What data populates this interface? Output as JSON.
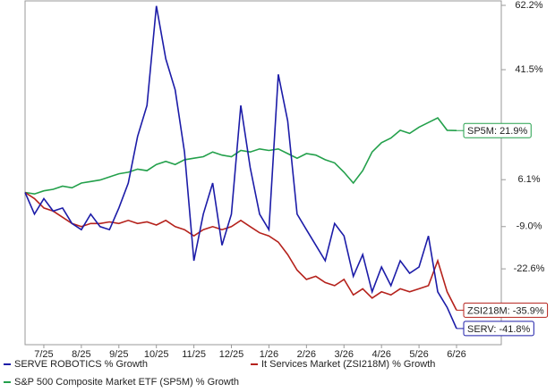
{
  "chart_data": {
    "type": "line",
    "categories": [
      null,
      null,
      "7/25",
      null,
      null,
      null,
      "8/25",
      null,
      null,
      null,
      "9/25",
      null,
      null,
      null,
      "10/25",
      null,
      null,
      null,
      "11/25",
      null,
      null,
      null,
      "12/25",
      null,
      null,
      null,
      "1/26",
      null,
      null,
      null,
      "2/26",
      null,
      null,
      null,
      "3/26",
      null,
      null,
      null,
      "4/26",
      null,
      null,
      null,
      "5/26",
      null,
      null,
      null,
      "6/26"
    ],
    "series": [
      {
        "name": "SERVE ROBOTICS % Growth",
        "color": "#1c1ca8",
        "values": [
          2,
          -5,
          0,
          -4,
          -3,
          -8,
          -10,
          -5,
          -9,
          -10,
          -3,
          5,
          20,
          30,
          62,
          45,
          35,
          15,
          -20,
          -5,
          5,
          -15,
          -5,
          30,
          10,
          -5,
          -10,
          40,
          25,
          -5,
          -10,
          -15,
          -20,
          -8,
          -12,
          -25,
          -18,
          -30,
          -22,
          -28,
          -20,
          -24,
          -22,
          -12,
          -30,
          -35,
          -41.8
        ],
        "value_labels": [
          null,
          null,
          null,
          null,
          null,
          null,
          null,
          null,
          null,
          null,
          null,
          null,
          null,
          null,
          null,
          null,
          null,
          null,
          null,
          null,
          null,
          null,
          null,
          null,
          null,
          null,
          null,
          null,
          null,
          null,
          null,
          null,
          null,
          null,
          null,
          null,
          null,
          null,
          null,
          null,
          null,
          null,
          null,
          null,
          null,
          null,
          "SERV: -41.8%"
        ]
      },
      {
        "name": "It Services Market (ZSI218M) % Growth",
        "color": "#b5221c",
        "values": [
          2,
          0,
          -3,
          -4,
          -6,
          -8,
          -9,
          -8,
          -8,
          -7.5,
          -8,
          -7,
          -8,
          -7.5,
          -8.5,
          -7,
          -9,
          -10,
          -12,
          -10,
          -9,
          -10,
          -9,
          -7,
          -9,
          -11,
          -12,
          -14,
          -18,
          -23,
          -26,
          -25,
          -27,
          -28,
          -26,
          -31,
          -29,
          -32,
          -30,
          -31,
          -29,
          -30,
          -29,
          -28,
          -20,
          -30,
          -35.9
        ],
        "value_labels": [
          null,
          null,
          null,
          null,
          null,
          null,
          null,
          null,
          null,
          null,
          null,
          null,
          null,
          null,
          null,
          null,
          null,
          null,
          null,
          null,
          null,
          null,
          null,
          null,
          null,
          null,
          null,
          null,
          null,
          null,
          null,
          null,
          null,
          null,
          null,
          null,
          null,
          null,
          null,
          null,
          null,
          null,
          null,
          null,
          null,
          null,
          "ZSI218M: -35.9%"
        ]
      },
      {
        "name": "S&P 500 Composite Market ETF (SP5M) % Growth",
        "color": "#23a04b",
        "values": [
          2,
          1.5,
          2.5,
          3,
          4,
          3.5,
          5,
          5.5,
          6,
          7,
          8,
          8.5,
          9.5,
          9,
          11,
          12,
          11,
          12.5,
          13,
          13.5,
          15,
          14,
          13.5,
          15.5,
          15,
          16,
          15.5,
          16,
          14.5,
          13,
          14.5,
          14,
          12.5,
          11.5,
          8.5,
          5,
          9,
          15,
          18,
          19.5,
          22,
          21,
          23,
          24.5,
          26,
          22,
          21.9
        ],
        "value_labels": [
          null,
          null,
          null,
          null,
          null,
          null,
          null,
          null,
          null,
          null,
          null,
          null,
          null,
          null,
          null,
          null,
          null,
          null,
          null,
          null,
          null,
          null,
          null,
          null,
          null,
          null,
          null,
          null,
          null,
          null,
          null,
          null,
          null,
          null,
          null,
          null,
          null,
          null,
          null,
          null,
          null,
          null,
          null,
          null,
          null,
          null,
          "SP5M: 21.9%"
        ]
      }
    ],
    "ylim": [
      -47,
      62.2
    ],
    "yticks": [
      {
        "value": 62.2,
        "label": "62.2%"
      },
      {
        "value": 41.5,
        "label": "41.5%"
      },
      {
        "value": 6.1,
        "label": "6.1%"
      },
      {
        "value": -9.0,
        "label": "-9.0%"
      },
      {
        "value": -22.6,
        "label": "-22.6%"
      }
    ],
    "grid": false
  }
}
